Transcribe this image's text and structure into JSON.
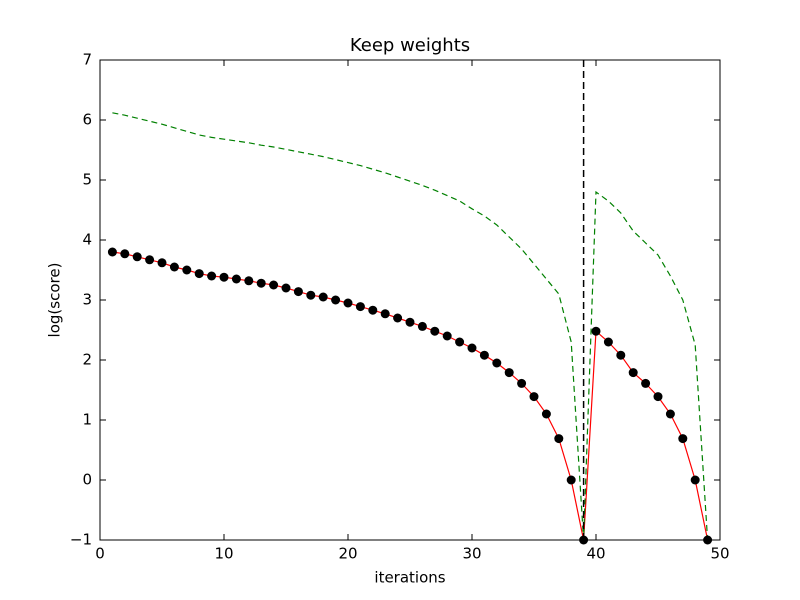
{
  "chart_data": {
    "type": "line",
    "title": "Keep weights",
    "xlabel": "iterations",
    "ylabel": "log(score)",
    "x": [
      1,
      2,
      3,
      4,
      5,
      6,
      7,
      8,
      9,
      10,
      11,
      12,
      13,
      14,
      15,
      16,
      17,
      18,
      19,
      20,
      21,
      22,
      23,
      24,
      25,
      26,
      27,
      28,
      29,
      30,
      31,
      32,
      33,
      34,
      35,
      36,
      37,
      38,
      39,
      40,
      41,
      42,
      43,
      44,
      45,
      46,
      47,
      48,
      49
    ],
    "series": [
      {
        "color": "#ff0000",
        "marker_color": "#000000",
        "line_style": "solid",
        "markers": true,
        "values": [
          3.8,
          3.77,
          3.72,
          3.67,
          3.62,
          3.55,
          3.5,
          3.44,
          3.4,
          3.38,
          3.35,
          3.32,
          3.28,
          3.25,
          3.2,
          3.14,
          3.08,
          3.05,
          3.0,
          2.95,
          2.89,
          2.83,
          2.77,
          2.7,
          2.63,
          2.56,
          2.48,
          2.4,
          2.3,
          2.2,
          2.08,
          1.95,
          1.79,
          1.61,
          1.39,
          1.1,
          0.69,
          0.0,
          -1.0,
          2.48,
          2.3,
          2.08,
          1.79,
          1.61,
          1.39,
          1.1,
          0.69,
          0.0,
          -1.0
        ]
      },
      {
        "color": "#008000",
        "line_style": "dashed",
        "markers": false,
        "values": [
          6.12,
          6.08,
          6.03,
          5.98,
          5.93,
          5.87,
          5.81,
          5.75,
          5.71,
          5.68,
          5.65,
          5.62,
          5.58,
          5.55,
          5.51,
          5.47,
          5.43,
          5.39,
          5.34,
          5.29,
          5.24,
          5.18,
          5.12,
          5.05,
          4.98,
          4.91,
          4.83,
          4.74,
          4.65,
          4.52,
          4.4,
          4.25,
          4.05,
          3.85,
          3.6,
          3.35,
          3.1,
          2.3,
          -1.0,
          4.8,
          4.65,
          4.45,
          4.15,
          3.95,
          3.75,
          3.4,
          3.0,
          2.25,
          -1.0
        ]
      }
    ],
    "vline_x": 39,
    "vline_color": "#000000",
    "xlim": [
      0,
      50
    ],
    "xticks": [
      0,
      10,
      20,
      30,
      40,
      50
    ],
    "ylim": [
      -1,
      7
    ],
    "yticks": [
      {
        "value": -1,
        "label": "−1"
      },
      0,
      1,
      2,
      3,
      4,
      5,
      6,
      7
    ],
    "grid": false
  }
}
